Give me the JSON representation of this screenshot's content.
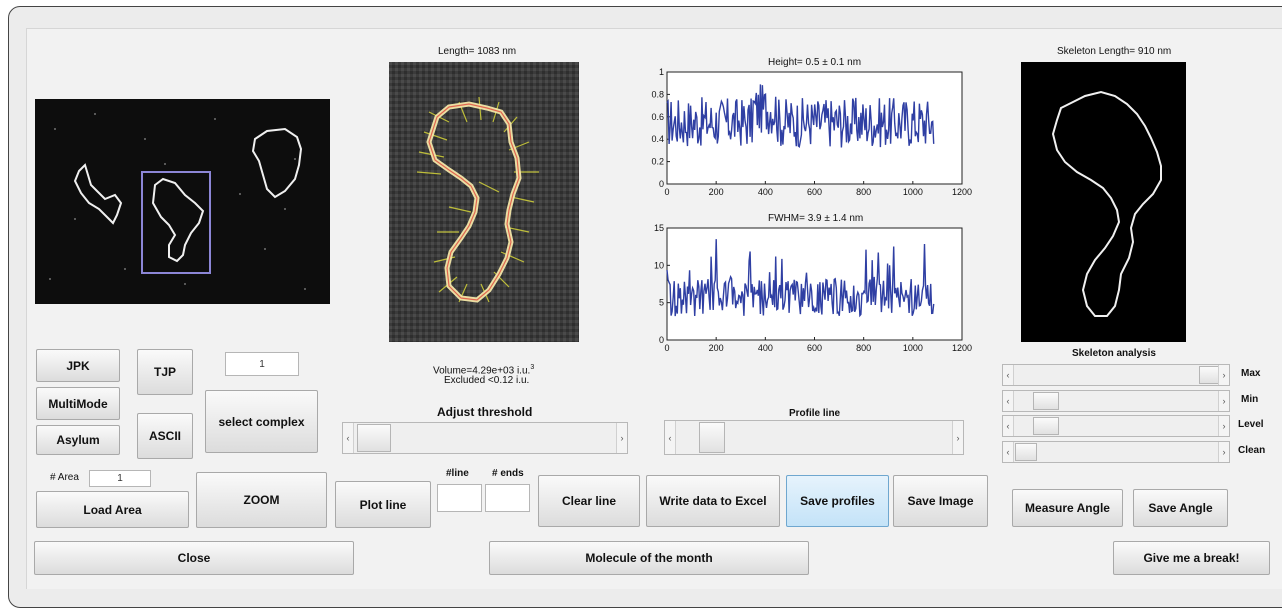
{
  "images": {
    "length_title": "Length= 1083 nm",
    "skeleton_title": "Skeleton Length= 910 nm",
    "volume_text": "Volume=4.29e+03 i.u.",
    "volume_sup": "3",
    "excluded_text": "Excluded <0.12 i.u."
  },
  "plots": {
    "height": {
      "title": "Height= 0.5 ± 0.1 nm",
      "xlim": [
        0,
        1200
      ],
      "ylim": [
        0,
        1
      ],
      "xticks": [
        "0",
        "200",
        "400",
        "600",
        "800",
        "1000",
        "1200"
      ],
      "yticks": [
        "0",
        "0.2",
        "0.4",
        "0.6",
        "0.8",
        "1"
      ],
      "color": "#2f3fa3"
    },
    "fwhm": {
      "title": "FWHM= 3.9 ± 1.4 nm",
      "xlim": [
        0,
        1200
      ],
      "ylim": [
        0,
        15
      ],
      "xticks": [
        "0",
        "200",
        "400",
        "600",
        "800",
        "1000",
        "1200"
      ],
      "yticks": [
        "0",
        "5",
        "10",
        "15"
      ],
      "color": "#2f3fa3"
    }
  },
  "controls": {
    "jpk": "JPK",
    "tjp": "TJP",
    "complex_field": "1",
    "multimode": "MultiMode",
    "ascii": "ASCII",
    "select_complex": "select complex",
    "asylum": "Asylum",
    "area_label": "# Area",
    "area_value": "1",
    "load_area": "Load Area",
    "zoom": "ZOOM",
    "adjust_threshold": "Adjust threshold",
    "profile_line": "Profile line",
    "plot_line": "Plot line",
    "line_label": "#line",
    "ends_label": "# ends",
    "clear_line": "Clear line",
    "write_excel": "Write data to Excel",
    "save_profiles": "Save profiles",
    "save_image": "Save Image",
    "skeleton_analysis": "Skeleton analysis",
    "max": "Max",
    "min": "Min",
    "level": "Level",
    "clean": "Clean",
    "measure_angle": "Measure Angle",
    "save_angle": "Save Angle",
    "close": "Close",
    "molecule_month": "Molecule of the month",
    "give_break": "Give me a break!"
  },
  "sliders": {
    "threshold": 0.05,
    "profile": 0.1,
    "max": 1.0,
    "min": 0.1,
    "level": 0.1,
    "clean": 0.03
  }
}
